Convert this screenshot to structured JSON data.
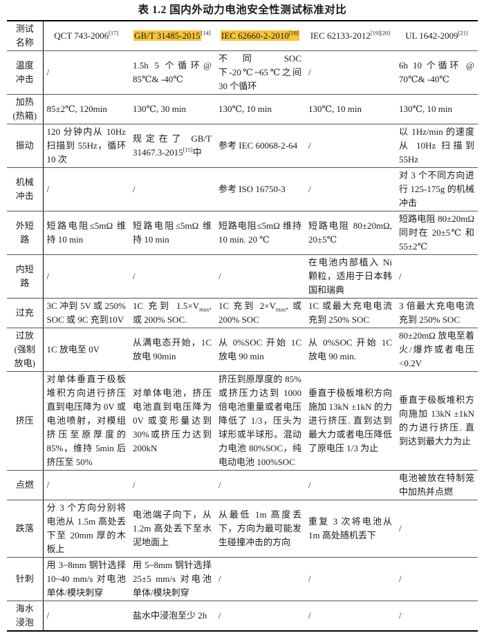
{
  "title": "表 1.2 国内外动力电池安全性测试标准对比",
  "colors": {
    "highlight": "#F7C437",
    "text": "#1A1A1A",
    "grid": "#555555",
    "frame": "#000000",
    "background": "#FFFFFF"
  },
  "header": {
    "row_label": "测试\n名称",
    "columns": [
      {
        "label": "QCT 743-2006",
        "ref": "[17]",
        "highlight": false
      },
      {
        "label": "GB/T 31485-2015",
        "ref": "[14]",
        "highlight": true,
        "highlight_ref": false
      },
      {
        "label": "IEC 62660-2-2010",
        "ref": "[18]",
        "highlight": true,
        "highlight_ref": true
      },
      {
        "label": "IEC 62133-2012",
        "ref": "[19][20]",
        "highlight": false
      },
      {
        "label": "UL 1642-2009",
        "ref": "[21]",
        "highlight": false
      }
    ]
  },
  "rows": [
    {
      "label": "温度\n冲击",
      "cells": [
        "/",
        "1.5h 5 个循环@ 85℃& -40℃",
        "不同 SOC 下-20℃~65℃之间 30 个循环",
        "/",
        "6h 10 个循环 @ 70℃& -40℃"
      ]
    },
    {
      "label": "加热\n(热箱)",
      "cells": [
        "85±2℃, 120min",
        "130℃, 30 min",
        "130℃, 10 min",
        "130℃, 10 min",
        "130℃, 10 min"
      ]
    },
    {
      "label": "振动",
      "cells": [
        "120 分钟内从 10Hz 扫描到 55Hz，循环 10 次",
        "规定在了 GB/T 31467.3-2015[15]中",
        "参考 IEC 60068-2-64",
        "/",
        "以 1Hz/min 的速度从 10Hz 扫描到 55Hz"
      ]
    },
    {
      "label": "机械\n冲击",
      "cells": [
        "/",
        "/",
        "参考 ISO 16750-3",
        "/",
        "对 3 个不同方向进行 125-175g 的机械冲击"
      ]
    },
    {
      "label": "外短\n路",
      "cells": [
        "短路电阻≤5mΩ 维持 10 min",
        "短路电阻≤5mΩ 维持 10 min",
        "短路电阻≤5mΩ 维持 10 min. 20 ℃",
        "短路电阻 80±20mΩ, 20±5℃",
        "短路电阻 80±20mΩ 同时在 20±5℃ 和 55±2℃"
      ]
    },
    {
      "label": "内短\n路",
      "cells": [
        "/",
        "/",
        "/",
        "在电池内部植入 Ni 颗粒，适用于日本韩国和瑞典",
        "/"
      ]
    },
    {
      "label": "过充",
      "cells": [
        "3C 冲到 5V 或 250% SOC 或 9C 充到10V",
        "1C 充到 1.5×V_{max}, 或 200% SOC.",
        "1C 充到 2×V_{max}, 或 200% SOC",
        "1C 或最大充电电流充到 250% SOC",
        "3 倍最大充电电流充到 250% SOC"
      ]
    },
    {
      "label": "过放\n(强制\n放电)",
      "cells": [
        "1C 放电至 0V",
        "从满电态开始，1C 放电 90min",
        "从 0%SOC 开始 1C 放电 90 min",
        "从 0%SOC 开始 1C 放电 90 min.",
        "80±20mΩ 放电至着火/爆炸或者电压<0.2V"
      ]
    },
    {
      "label": "挤压",
      "cells": [
        "对单体垂直于极板堆积方向进行挤压直到电压降为 0V 或电池喷射，对模组挤压至原厚度的 85%，维持 5min 后挤压至 50%",
        "对单体电池，挤压电池直到电压降为 0V 或变形量达到 30%或挤压力达到 200kN",
        "挤压到原厚度的 85% 或挤压力达到 1000 倍电池重量或者电压降低了 1/3，压头为球形或半球形。混动力电池 80%SOC，纯电动电池 100%SOC",
        "垂直于极板堆积方向施加 13kN ±1kN 的力进行挤压. 直到达到最大力或者电压降低了原电压 1/3 为止",
        "垂直于极板堆积方向施加 13kN ±1kN 的力进行挤压. 直到达到最大力为止"
      ]
    },
    {
      "label": "点燃",
      "cells": [
        "/",
        "/",
        "/",
        "/",
        "电池被放在特制笼中加热并点燃"
      ]
    },
    {
      "label": "跌落",
      "cells": [
        "分 3 个方向分别将电池从 1.5m 高处丢下至 20mm 厚的木板上",
        "电池端子向下，从 1.2m 高处丢下至水泥地面上",
        "从最低 1m 高度丢下，方向为最可能发生碰撞冲击的方向",
        "重复 3 次将电池从 1m 高处随机丢下",
        "/"
      ]
    },
    {
      "label": "针刺",
      "cells": [
        "用 3~8mm 钢针选择 10~40 mm/s 对电池单体/模块刺穿",
        "用 5~8mm 钢针选择 25±5 mm/s 对电池单体/模块刺穿",
        "/",
        "/",
        "/"
      ]
    },
    {
      "label": "海水\n浸泡",
      "cells": [
        "/",
        "盐水中浸泡至少 2h",
        "/",
        "/",
        "/"
      ]
    }
  ]
}
